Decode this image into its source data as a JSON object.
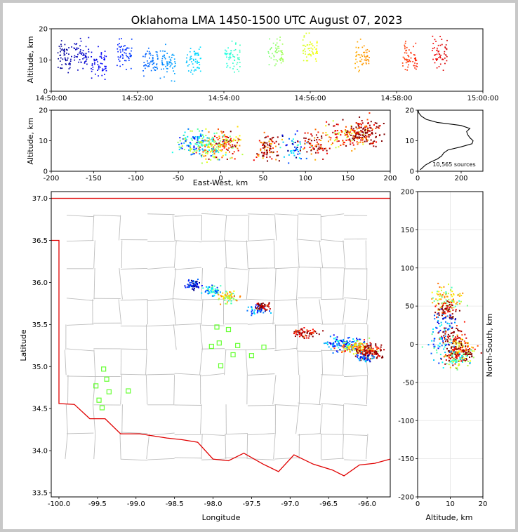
{
  "chart_data": {
    "title": "Oklahoma LMA 1450-1500 UTC August 07, 2023",
    "source_count_label": "10,565 sources",
    "panels": [
      {
        "id": "time-altitude",
        "type": "scatter",
        "ylabel": "Altitude, km",
        "xlim": [
          "14:50:00",
          "15:00:00"
        ],
        "ylim": [
          0,
          20
        ],
        "x_ticks": [
          "14:50:00",
          "14:52:00",
          "14:54:00",
          "14:56:00",
          "14:58:00",
          "15:00:00"
        ],
        "y_ticks": [
          0,
          10,
          20
        ],
        "color_encoding": "time (blue to red)",
        "clusters": [
          {
            "minute": 0.3,
            "z_center": 11
          },
          {
            "minute": 0.7,
            "z_center": 12
          },
          {
            "minute": 1.1,
            "z_center": 9
          },
          {
            "minute": 1.7,
            "z_center": 12
          },
          {
            "minute": 2.3,
            "z_center": 10
          },
          {
            "minute": 2.7,
            "z_center": 9
          },
          {
            "minute": 3.3,
            "z_center": 10
          },
          {
            "minute": 4.2,
            "z_center": 11
          },
          {
            "minute": 5.2,
            "z_center": 12
          },
          {
            "minute": 6.0,
            "z_center": 13
          },
          {
            "minute": 7.2,
            "z_center": 11
          },
          {
            "minute": 8.3,
            "z_center": 11
          },
          {
            "minute": 9.0,
            "z_center": 12
          }
        ]
      },
      {
        "id": "ew-altitude",
        "type": "scatter",
        "xlabel": "East-West, km",
        "ylabel": "Altitude, km",
        "xlim": [
          -200,
          200
        ],
        "ylim": [
          0,
          20
        ],
        "x_ticks": [
          -200,
          -150,
          -100,
          -50,
          0,
          50,
          100,
          150,
          200
        ],
        "y_ticks": [
          0,
          10,
          20
        ]
      },
      {
        "id": "altitude-histogram",
        "type": "line",
        "xlim": [
          0,
          300
        ],
        "ylim": [
          0,
          20
        ],
        "x_ticks": [
          0,
          200
        ],
        "y_ticks": [
          0,
          10,
          20
        ],
        "profile": [
          [
            0.5,
            12
          ],
          [
            1,
            20
          ],
          [
            2,
            35
          ],
          [
            3,
            60
          ],
          [
            4,
            90
          ],
          [
            5,
            110
          ],
          [
            6,
            120
          ],
          [
            7,
            140
          ],
          [
            8,
            200
          ],
          [
            9,
            250
          ],
          [
            10,
            255
          ],
          [
            11,
            240
          ],
          [
            12,
            230
          ],
          [
            13,
            225
          ],
          [
            14,
            240
          ],
          [
            15,
            200
          ],
          [
            16,
            90
          ],
          [
            17,
            40
          ],
          [
            18,
            18
          ],
          [
            19,
            6
          ],
          [
            20,
            2
          ]
        ]
      },
      {
        "id": "plan-view",
        "type": "scatter",
        "xlabel": "Longitude",
        "ylabel": "Latitude",
        "xlim": [
          -100.1,
          -95.7
        ],
        "ylim": [
          33.45,
          37.08
        ],
        "x_ticks": [
          -100.0,
          -99.5,
          -99.0,
          -98.5,
          -98.0,
          -97.5,
          -97.0,
          -96.5,
          -96.0
        ],
        "y_ticks": [
          33.5,
          34.0,
          34.5,
          35.0,
          35.5,
          36.0,
          36.5,
          37.0
        ],
        "stations": [
          [
            -99.42,
            34.97
          ],
          [
            -99.38,
            34.85
          ],
          [
            -99.52,
            34.77
          ],
          [
            -99.35,
            34.7
          ],
          [
            -99.1,
            34.71
          ],
          [
            -99.48,
            34.6
          ],
          [
            -99.44,
            34.51
          ],
          [
            -97.95,
            35.47
          ],
          [
            -97.8,
            35.44
          ],
          [
            -98.02,
            35.24
          ],
          [
            -97.92,
            35.28
          ],
          [
            -97.68,
            35.25
          ],
          [
            -97.34,
            35.23
          ],
          [
            -97.74,
            35.14
          ],
          [
            -97.5,
            35.13
          ],
          [
            -97.9,
            35.01
          ]
        ]
      },
      {
        "id": "ns-altitude",
        "type": "scatter",
        "xlabel": "Altitude, km",
        "ylabel": "North-South, km",
        "xlim": [
          0,
          20
        ],
        "ylim": [
          -200,
          200
        ],
        "x_ticks": [
          0,
          10,
          20
        ],
        "y_ticks": [
          -200,
          -150,
          -100,
          -50,
          0,
          50,
          100,
          150,
          200
        ]
      }
    ]
  }
}
